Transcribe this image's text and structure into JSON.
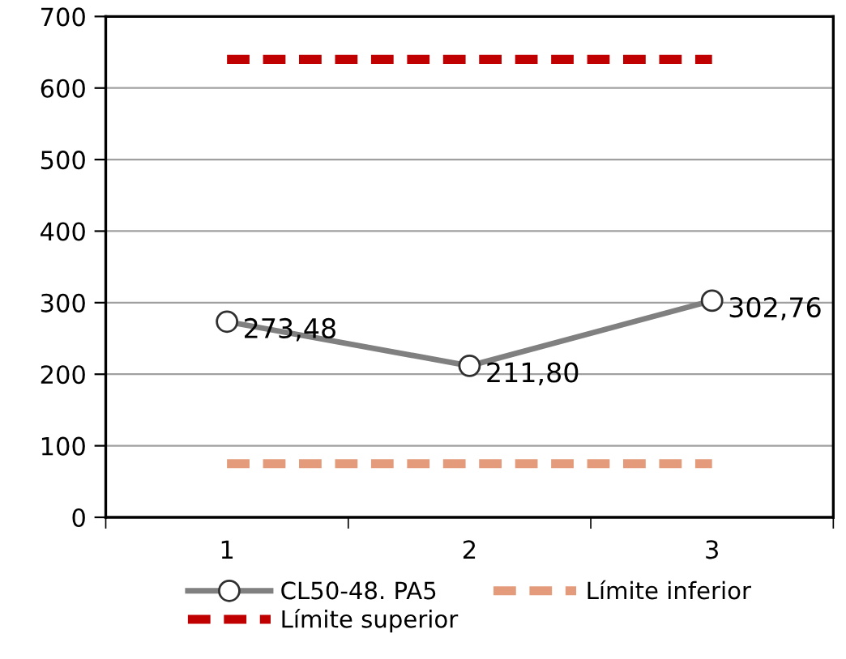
{
  "chart_data": {
    "type": "line",
    "categories": [
      "1",
      "2",
      "3"
    ],
    "series": [
      {
        "name": "CL50-48. PA5",
        "color": "#808080",
        "values": [
          273.48,
          211.8,
          302.76
        ],
        "marker": "circle",
        "line_style": "solid",
        "value_labels": [
          "273,48",
          "211,80",
          "302,76"
        ]
      },
      {
        "name": "Límite inferior",
        "color": "#e39b7b",
        "values": [
          75,
          75,
          75
        ],
        "marker": "none",
        "line_style": "dashed"
      },
      {
        "name": "Límite superior",
        "color": "#c00000",
        "values": [
          640,
          640,
          640
        ],
        "marker": "none",
        "line_style": "dashed"
      }
    ],
    "ylim": [
      0,
      700
    ],
    "yticks": [
      0,
      100,
      200,
      300,
      400,
      500,
      600,
      700
    ],
    "grid": "y",
    "legend": "bottom"
  }
}
